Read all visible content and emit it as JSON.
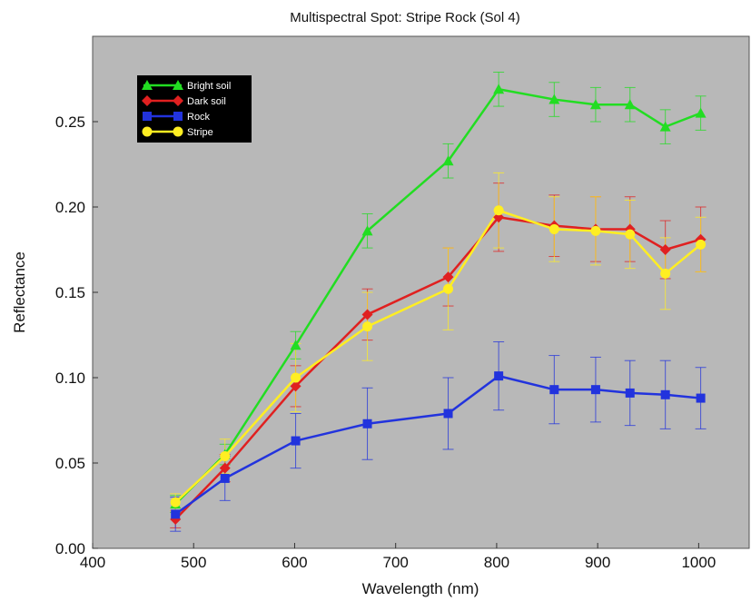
{
  "chart_data": {
    "type": "line",
    "title": "Multispectral Spot: Stripe Rock (Sol 4)",
    "xlabel": "Wavelength (nm)",
    "ylabel": "Reflectance",
    "xlim": [
      400,
      1050
    ],
    "ylim": [
      0,
      0.3
    ],
    "xticks": [
      400,
      500,
      600,
      700,
      800,
      900,
      1000
    ],
    "yticks": [
      0.0,
      0.05,
      0.1,
      0.15,
      0.2,
      0.25
    ],
    "ytick_labels": [
      "0.00",
      "0.05",
      "0.10",
      "0.15",
      "0.20",
      "0.25"
    ],
    "xtick_labels": [
      "400",
      "500",
      "600",
      "700",
      "800",
      "900",
      "1000"
    ],
    "grid": false,
    "background": "#b8b8b8",
    "legend_placement": "top-left",
    "x": [
      482,
      531,
      601,
      672,
      752,
      802,
      857,
      898,
      932,
      967,
      1002
    ],
    "series": [
      {
        "name": "Bright soil",
        "color": "#22dd22",
        "marker": "triangle",
        "values": [
          0.026,
          0.055,
          0.119,
          0.186,
          0.227,
          0.269,
          0.263,
          0.26,
          0.26,
          0.247,
          0.255
        ],
        "errors": [
          0.005,
          0.006,
          0.008,
          0.01,
          0.01,
          0.01,
          0.01,
          0.01,
          0.01,
          0.01,
          0.01
        ]
      },
      {
        "name": "Dark soil",
        "color": "#e02020",
        "marker": "diamond",
        "values": [
          0.017,
          0.047,
          0.095,
          0.137,
          0.159,
          0.194,
          0.189,
          0.187,
          0.187,
          0.175,
          0.181
        ],
        "errors": [
          0.005,
          0.008,
          0.012,
          0.015,
          0.017,
          0.02,
          0.018,
          0.019,
          0.019,
          0.017,
          0.019
        ]
      },
      {
        "name": "Rock",
        "color": "#2233dd",
        "marker": "square",
        "values": [
          0.02,
          0.041,
          0.063,
          0.073,
          0.079,
          0.101,
          0.093,
          0.093,
          0.091,
          0.09,
          0.088
        ],
        "errors": [
          0.01,
          0.013,
          0.016,
          0.021,
          0.021,
          0.02,
          0.02,
          0.019,
          0.019,
          0.02,
          0.018
        ]
      },
      {
        "name": "Stripe",
        "color": "#ffee22",
        "marker": "circle",
        "values": [
          0.027,
          0.054,
          0.1,
          0.13,
          0.152,
          0.198,
          0.187,
          0.186,
          0.184,
          0.161,
          0.178
        ],
        "errors": [
          0.005,
          0.01,
          0.02,
          0.02,
          0.024,
          0.022,
          0.019,
          0.02,
          0.02,
          0.021,
          0.016
        ]
      }
    ]
  }
}
